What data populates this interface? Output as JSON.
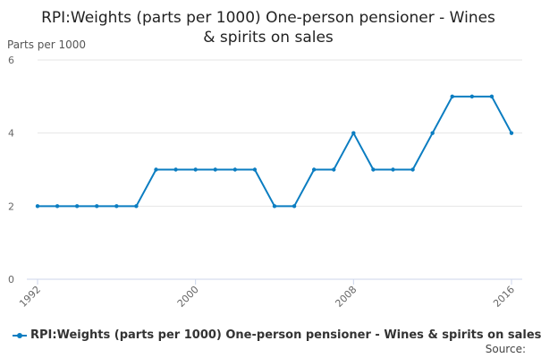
{
  "title_lines": [
    "RPI:Weights (parts per 1000) One-person pensioner - Wines",
    "& spirits on sales"
  ],
  "source_label": "Source:",
  "colors": {
    "series": "#0b7dc1",
    "grid": "#e6e6e6",
    "axis": "#ccd6eb"
  },
  "chart_data": {
    "type": "line",
    "title": "RPI:Weights (parts per 1000) One-person pensioner - Wines & spirits on sales",
    "ylabel": "Parts per 1000",
    "xlabel": "",
    "ylim": [
      0,
      6
    ],
    "yticks": [
      0,
      2,
      4,
      6
    ],
    "xticks": [
      1992,
      2000,
      2008,
      2016
    ],
    "grid": true,
    "legend_position": "bottom-left",
    "x": [
      1992,
      1993,
      1994,
      1995,
      1996,
      1997,
      1998,
      1999,
      2000,
      2001,
      2002,
      2003,
      2004,
      2005,
      2006,
      2007,
      2008,
      2009,
      2010,
      2011,
      2012,
      2013,
      2014,
      2015,
      2016
    ],
    "series": [
      {
        "name": "RPI:Weights (parts per 1000) One-person pensioner - Wines & spirits on sales",
        "values": [
          2,
          2,
          2,
          2,
          2,
          2,
          3,
          3,
          3,
          3,
          3,
          3,
          2,
          2,
          3,
          3,
          4,
          3,
          3,
          3,
          4,
          5,
          5,
          5,
          4
        ]
      }
    ]
  }
}
